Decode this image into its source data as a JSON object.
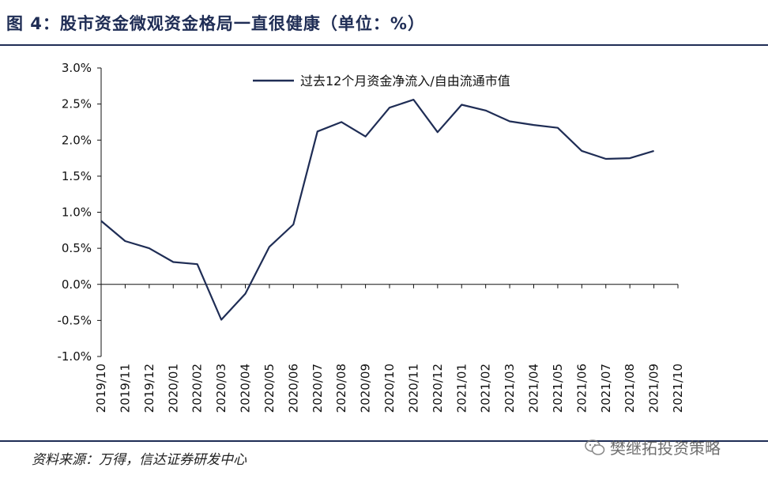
{
  "header": {
    "title": "图 4：股市资金微观资金格局一直很健康（单位：%）"
  },
  "footer": {
    "source": "资料来源：万得，信达证券研发中心",
    "watermark": "樊继拓投资策略"
  },
  "colors": {
    "line": "#1f2d55",
    "axis": "#111111",
    "accent": "#1f2d55"
  },
  "chart_data": {
    "type": "line",
    "categories": [
      "2019/10",
      "2019/11",
      "2019/12",
      "2020/01",
      "2020/02",
      "2020/03",
      "2020/04",
      "2020/05",
      "2020/06",
      "2020/07",
      "2020/08",
      "2020/09",
      "2020/10",
      "2020/11",
      "2020/12",
      "2021/01",
      "2021/02",
      "2021/03",
      "2021/04",
      "2021/05",
      "2021/06",
      "2021/07",
      "2021/08",
      "2021/09",
      "2021/10"
    ],
    "series": [
      {
        "name": "过去12个月资金净流入/自由流通市值",
        "values": [
          0.88,
          0.6,
          0.5,
          0.31,
          0.28,
          -0.49,
          -0.13,
          0.52,
          0.83,
          2.12,
          2.25,
          2.05,
          2.45,
          2.56,
          2.11,
          2.49,
          2.41,
          2.26,
          2.21,
          2.17,
          1.85,
          1.74,
          1.75,
          1.85,
          null
        ]
      }
    ],
    "yticks": [
      "3.0%",
      "2.5%",
      "2.0%",
      "1.5%",
      "1.0%",
      "0.5%",
      "0.0%",
      "-0.5%",
      "-1.0%"
    ],
    "ylim": [
      -1.0,
      3.0
    ],
    "grid": false,
    "legend": "top-center"
  }
}
